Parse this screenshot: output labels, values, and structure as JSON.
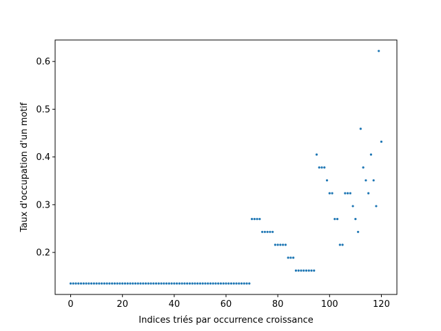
{
  "chart_data": {
    "type": "scatter",
    "title": "",
    "xlabel": "Indices triés par occurrence croissance",
    "ylabel": "Taux d'occupation d'un motif",
    "xlim": [
      -6,
      126
    ],
    "ylim": [
      0.112,
      0.645
    ],
    "xticks": [
      0,
      20,
      40,
      60,
      80,
      100,
      120
    ],
    "xtick_labels": [
      "0",
      "20",
      "40",
      "60",
      "80",
      "100",
      "120"
    ],
    "yticks": [
      0.2,
      0.3,
      0.4,
      0.5,
      0.6
    ],
    "ytick_labels": [
      "0.2",
      "0.3",
      "0.4",
      "0.5",
      "0.6"
    ],
    "grid": false,
    "marker_color": "#1f77b4",
    "series": [
      {
        "x": [
          0,
          1,
          2,
          3,
          4,
          5,
          6,
          7,
          8,
          9,
          10,
          11,
          12,
          13,
          14,
          15,
          16,
          17,
          18,
          19,
          20,
          21,
          22,
          23,
          24,
          25,
          26,
          27,
          28,
          29,
          30,
          31,
          32,
          33,
          34,
          35,
          36,
          37,
          38,
          39,
          40,
          41,
          42,
          43,
          44,
          45,
          46,
          47,
          48,
          49,
          50,
          51,
          52,
          53,
          54,
          55,
          56,
          57,
          58,
          59,
          60,
          61,
          62,
          63,
          64,
          65,
          66,
          67,
          68,
          69,
          70,
          71,
          72,
          73,
          74,
          75,
          76,
          77,
          78,
          79,
          80,
          81,
          82,
          83,
          84,
          85,
          86,
          87,
          88,
          89,
          90,
          91,
          92,
          93,
          94,
          95,
          96,
          97,
          98,
          99,
          100,
          101,
          102,
          103,
          104,
          105,
          106,
          107,
          108,
          109,
          110,
          111,
          112,
          113,
          114,
          115,
          116,
          117,
          118,
          119,
          120
        ],
        "y": [
          0.135,
          0.135,
          0.135,
          0.135,
          0.135,
          0.135,
          0.135,
          0.135,
          0.135,
          0.135,
          0.135,
          0.135,
          0.135,
          0.135,
          0.135,
          0.135,
          0.135,
          0.135,
          0.135,
          0.135,
          0.135,
          0.135,
          0.135,
          0.135,
          0.135,
          0.135,
          0.135,
          0.135,
          0.135,
          0.135,
          0.135,
          0.135,
          0.135,
          0.135,
          0.135,
          0.135,
          0.135,
          0.135,
          0.135,
          0.135,
          0.135,
          0.135,
          0.135,
          0.135,
          0.135,
          0.135,
          0.135,
          0.135,
          0.135,
          0.135,
          0.135,
          0.135,
          0.135,
          0.135,
          0.135,
          0.135,
          0.135,
          0.135,
          0.135,
          0.135,
          0.135,
          0.135,
          0.135,
          0.135,
          0.135,
          0.135,
          0.135,
          0.135,
          0.135,
          0.135,
          0.27,
          0.27,
          0.27,
          0.27,
          0.243,
          0.243,
          0.243,
          0.243,
          0.243,
          0.216,
          0.216,
          0.216,
          0.216,
          0.216,
          0.189,
          0.189,
          0.189,
          0.162,
          0.162,
          0.162,
          0.162,
          0.162,
          0.162,
          0.162,
          0.162,
          0.405,
          0.378,
          0.378,
          0.378,
          0.351,
          0.324,
          0.324,
          0.27,
          0.27,
          0.216,
          0.216,
          0.324,
          0.324,
          0.324,
          0.297,
          0.27,
          0.243,
          0.459,
          0.378,
          0.351,
          0.324,
          0.405,
          0.351,
          0.297,
          0.622,
          0.432
        ]
      }
    ]
  }
}
